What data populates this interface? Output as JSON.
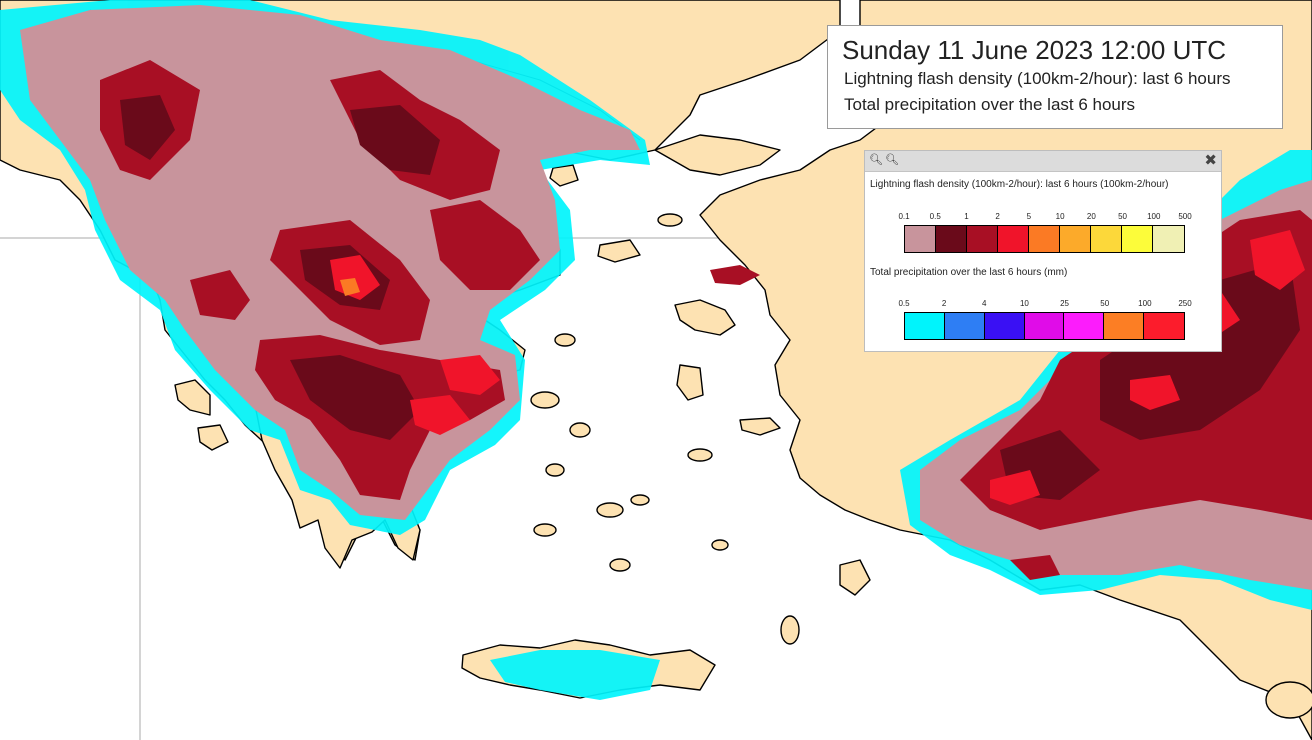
{
  "title": {
    "date_line": "Sunday 11 June 2023 12:00 UTC",
    "line1": "Lightning flash density (100km-2/hour): last 6 hours",
    "line2": "Total precipitation over the last 6 hours"
  },
  "legend": {
    "toolbar": {
      "zoom_in_icon": "magnifier-plus",
      "zoom_out_icon": "magnifier-minus",
      "close_icon": "x"
    },
    "lightning": {
      "heading": "Lightning flash density (100km-2/hour): last 6 hours (100km-2/hour)",
      "ticks": [
        "0.1",
        "0.5",
        "1",
        "2",
        "5",
        "10",
        "20",
        "50",
        "100",
        "500"
      ],
      "colors": [
        "#c8949c",
        "#6a0a1a",
        "#a80f24",
        "#f0142a",
        "#fb7a24",
        "#fcaa2a",
        "#fcd83a",
        "#fcfc3a",
        "#f0f0b4"
      ]
    },
    "precip": {
      "heading": "Total precipitation over the last 6 hours (mm)",
      "ticks": [
        "0.5",
        "2",
        "4",
        "10",
        "25",
        "50",
        "100",
        "250"
      ],
      "colors": [
        "#00f4fc",
        "#2e7ef4",
        "#3a10f4",
        "#e00ce8",
        "#fc1cfc",
        "#fc7e24",
        "#fc1c2c"
      ]
    }
  },
  "map": {
    "colors": {
      "sea": "#ffffff",
      "land": "#fde2b2",
      "coast": "#000000",
      "border": "#3b3b3b",
      "gridline": "#a9a9a9"
    }
  }
}
